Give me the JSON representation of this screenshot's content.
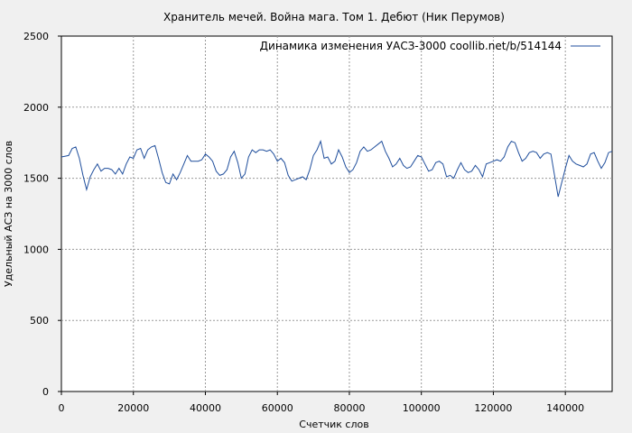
{
  "chart_data": {
    "type": "line",
    "title": "Хранитель мечей. Война мага. Том 1. Дебют (Ник Перумов)",
    "xlabel": "Счетчик слов",
    "ylabel": "Удельный АСЗ на 3000 слов",
    "xlim": [
      0,
      153000
    ],
    "ylim": [
      0,
      2500
    ],
    "xticks": [
      0,
      20000,
      40000,
      60000,
      80000,
      100000,
      120000,
      140000
    ],
    "yticks": [
      0,
      500,
      1000,
      1500,
      2000,
      2500
    ],
    "grid": true,
    "legend_position": "top-right",
    "series": [
      {
        "name": "Динамика изменения УАСЗ-3000  coollib.net/b/514144",
        "color": "#1f4e9c",
        "x": [
          0,
          2000,
          3000,
          4000,
          5000,
          6000,
          7000,
          8000,
          9000,
          10000,
          11000,
          12000,
          13000,
          14000,
          15000,
          16000,
          17000,
          18000,
          19000,
          20000,
          21000,
          22000,
          23000,
          24000,
          25000,
          26000,
          27000,
          28000,
          29000,
          30000,
          31000,
          32000,
          33000,
          34000,
          35000,
          36000,
          37000,
          38000,
          39000,
          40000,
          41000,
          42000,
          43000,
          44000,
          45000,
          46000,
          47000,
          48000,
          49000,
          50000,
          51000,
          52000,
          53000,
          54000,
          55000,
          56000,
          57000,
          58000,
          59000,
          60000,
          61000,
          62000,
          63000,
          64000,
          65000,
          66000,
          67000,
          68000,
          69000,
          70000,
          71000,
          72000,
          73000,
          74000,
          75000,
          76000,
          77000,
          78000,
          79000,
          80000,
          81000,
          82000,
          83000,
          84000,
          85000,
          86000,
          87000,
          88000,
          89000,
          90000,
          91000,
          92000,
          93000,
          94000,
          95000,
          96000,
          97000,
          98000,
          99000,
          100000,
          101000,
          102000,
          103000,
          104000,
          105000,
          106000,
          107000,
          108000,
          109000,
          110000,
          111000,
          112000,
          113000,
          114000,
          115000,
          116000,
          117000,
          118000,
          119000,
          120000,
          121000,
          122000,
          123000,
          124000,
          125000,
          126000,
          127000,
          128000,
          129000,
          130000,
          131000,
          132000,
          133000,
          134000,
          135000,
          136000,
          137000,
          138000,
          139000,
          140000,
          141000,
          142000,
          143000,
          144000,
          145000,
          146000,
          147000,
          148000,
          149000,
          150000,
          151000,
          152000,
          153000
        ],
        "y": [
          1650,
          1660,
          1710,
          1720,
          1640,
          1520,
          1420,
          1510,
          1560,
          1600,
          1550,
          1570,
          1570,
          1560,
          1530,
          1570,
          1530,
          1600,
          1650,
          1640,
          1700,
          1710,
          1640,
          1700,
          1720,
          1730,
          1640,
          1540,
          1470,
          1460,
          1530,
          1490,
          1540,
          1600,
          1660,
          1620,
          1620,
          1620,
          1630,
          1670,
          1650,
          1620,
          1550,
          1520,
          1530,
          1560,
          1650,
          1690,
          1610,
          1500,
          1530,
          1650,
          1700,
          1680,
          1700,
          1700,
          1690,
          1700,
          1670,
          1620,
          1640,
          1610,
          1520,
          1480,
          1490,
          1500,
          1510,
          1490,
          1560,
          1660,
          1700,
          1760,
          1640,
          1650,
          1600,
          1620,
          1700,
          1650,
          1580,
          1540,
          1560,
          1610,
          1690,
          1720,
          1690,
          1700,
          1720,
          1740,
          1760,
          1690,
          1640,
          1580,
          1600,
          1640,
          1590,
          1570,
          1580,
          1620,
          1660,
          1650,
          1600,
          1550,
          1560,
          1610,
          1620,
          1600,
          1510,
          1520,
          1500,
          1560,
          1610,
          1560,
          1540,
          1550,
          1590,
          1560,
          1510,
          1600,
          1610,
          1620,
          1630,
          1620,
          1650,
          1720,
          1760,
          1750,
          1680,
          1620,
          1640,
          1680,
          1690,
          1680,
          1640,
          1670,
          1680,
          1670,
          1520,
          1370,
          1470,
          1570,
          1660,
          1620,
          1600,
          1590,
          1580,
          1600,
          1670,
          1680,
          1620,
          1570,
          1610,
          1680,
          1690
        ]
      }
    ]
  }
}
